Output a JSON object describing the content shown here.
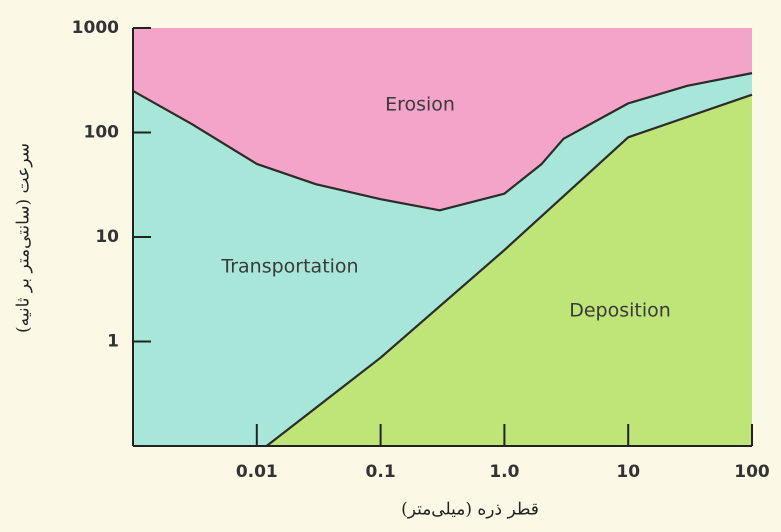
{
  "chart_data": {
    "type": "region",
    "x_label": "قطر ذره (میلی‌متر)",
    "y_label": "سرعت (سانتی‌متر بر ثانیه)",
    "log_x": true,
    "log_y": true,
    "xlim": [
      0.001,
      100
    ],
    "ylim": [
      0.1,
      1000
    ],
    "xticks": [
      0.01,
      0.1,
      {
        "value": 1,
        "label": "1.0"
      },
      10,
      100
    ],
    "yticks": [
      1,
      10,
      100,
      1000
    ],
    "background": "#f4a4c8",
    "series": [
      {
        "color": "#a9e6da",
        "x": [
          0.001,
          0.003,
          0.01,
          0.03,
          0.1,
          0.3,
          1,
          2,
          3,
          10,
          30,
          100
        ],
        "values": [
          250,
          120,
          50,
          32,
          23,
          18,
          26,
          50,
          87,
          190,
          280,
          370
        ]
      },
      {
        "color": "#bfe477",
        "x": [
          0.012,
          0.1,
          1,
          10,
          100
        ],
        "values": [
          0.1,
          0.7,
          7.5,
          90,
          230
        ]
      }
    ],
    "regions": [
      "Erosion",
      "Transportation",
      "Deposition"
    ]
  }
}
